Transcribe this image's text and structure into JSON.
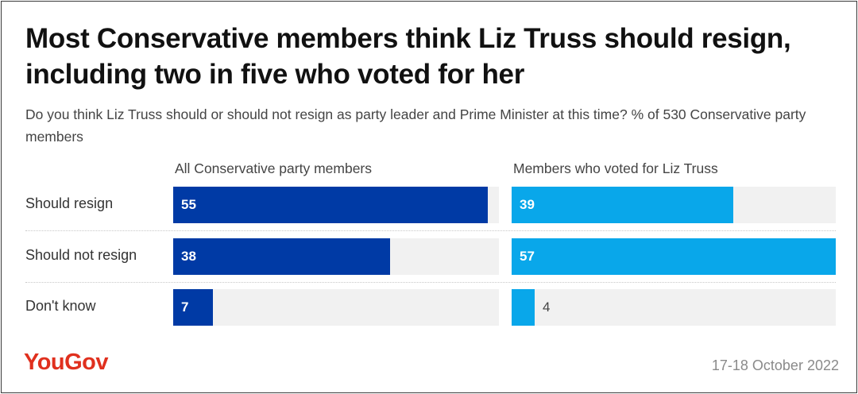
{
  "title": "Most Conservative members think Liz Truss should resign, including two in five who voted for her",
  "subtitle": "Do you think Liz Truss should or should not resign as party leader and Prime Minister at this time? % of 530 Conservative party members",
  "brand": "YouGov",
  "date": "17-18 October 2022",
  "colors": {
    "series_all": "#003aa5",
    "series_truss": "#09a7ea",
    "track": "#f1f1f1",
    "brand": "#e0301e"
  },
  "chart_data": {
    "type": "bar",
    "orientation": "horizontal",
    "title": "Most Conservative members think Liz Truss should resign, including two in five who voted for her",
    "categories": [
      "Should resign",
      "Should not resign",
      "Don't know"
    ],
    "xlim": [
      0,
      57
    ],
    "series": [
      {
        "name": "All Conservative party members",
        "values": [
          55,
          38,
          7
        ]
      },
      {
        "name": "Members who voted for Liz Truss",
        "values": [
          39,
          57,
          4
        ]
      }
    ]
  }
}
